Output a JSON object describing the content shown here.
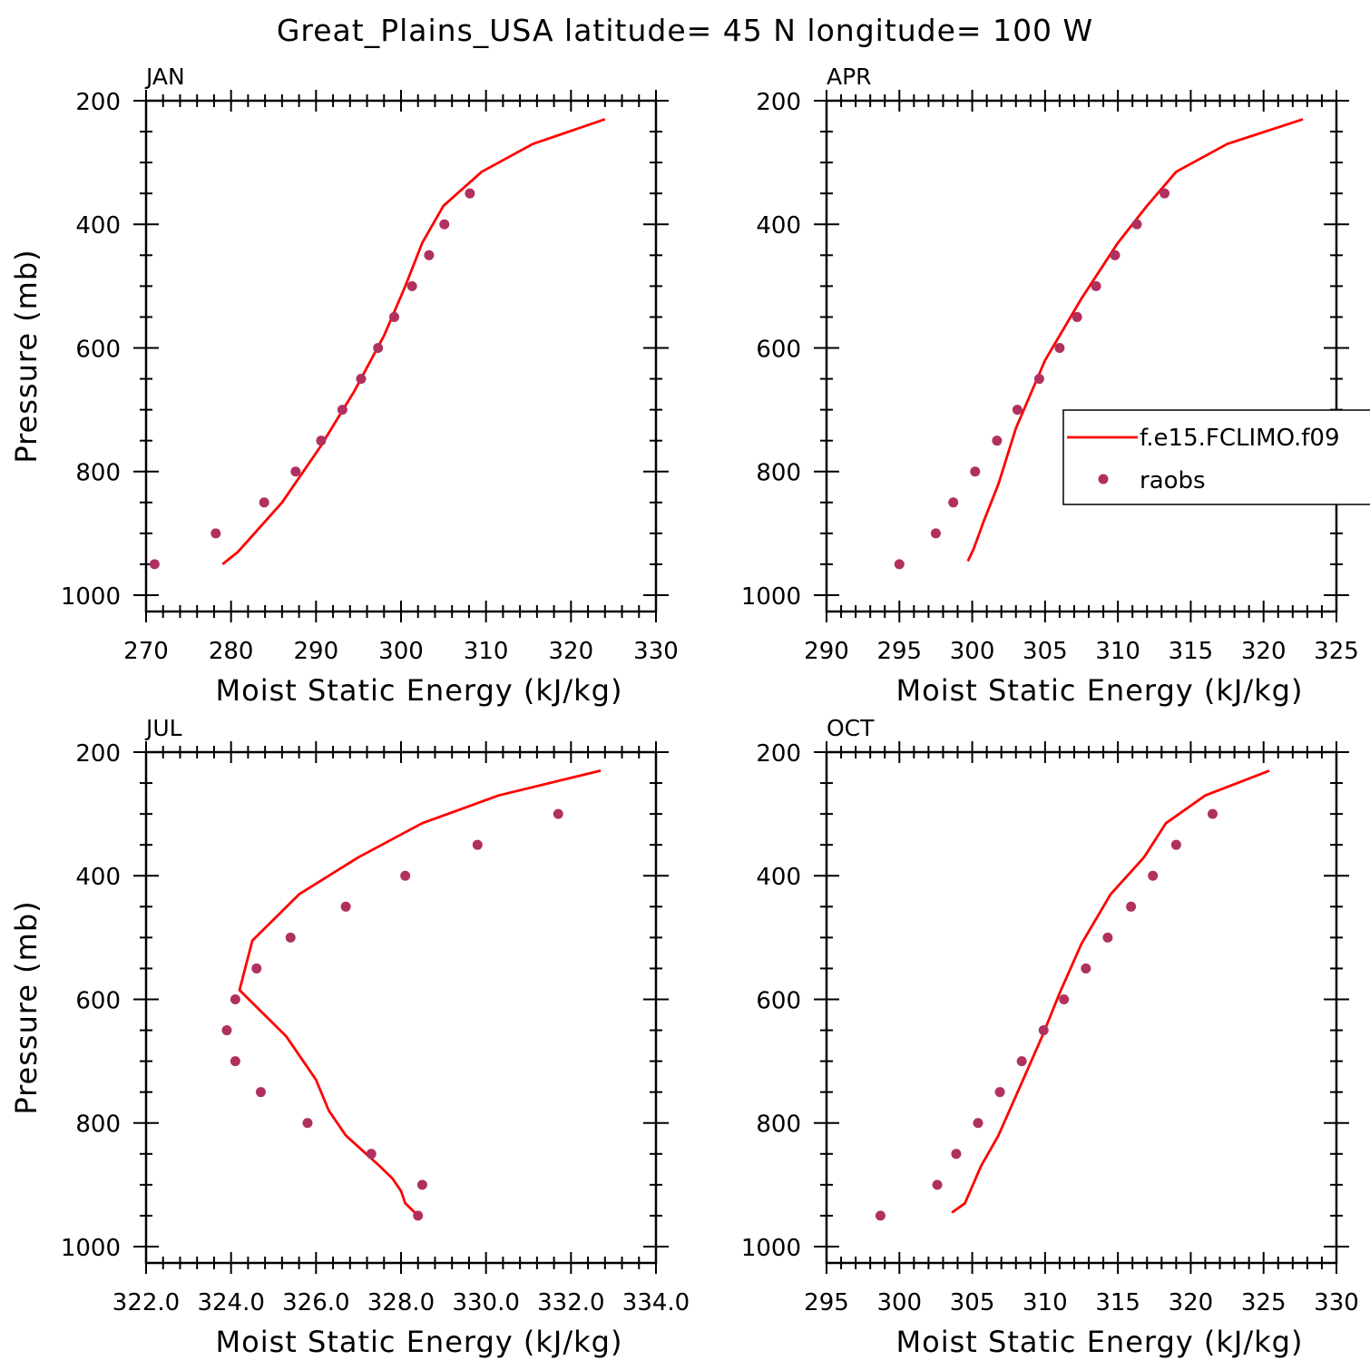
{
  "title": "Great_Plains_USA  latitude= 45 N longitude= 100 W",
  "colors": {
    "model": "#ff0000",
    "obs": "#b03060",
    "axis": "#000000"
  },
  "legend": {
    "entries": [
      {
        "label": "f.e15.FCLIMO.f09",
        "kind": "line"
      },
      {
        "label": "raobs",
        "kind": "marker"
      }
    ]
  },
  "chart_data": [
    {
      "type": "line",
      "title": "JAN",
      "xlabel": "Moist Static Energy (kJ/kg)",
      "ylabel": "Pressure (mb)",
      "xlim": [
        270,
        330
      ],
      "ylim": [
        1000,
        200
      ],
      "xticks": [
        "270",
        "280",
        "290",
        "300",
        "310",
        "320",
        "330"
      ],
      "xtick_values": [
        270,
        280,
        290,
        300,
        310,
        320,
        330
      ],
      "yticks": [
        "200",
        "400",
        "600",
        "800",
        "1000"
      ],
      "ytick_values": [
        200,
        400,
        600,
        800,
        1000
      ],
      "series": [
        {
          "name": "f.e15.FCLIMO.f09",
          "kind": "line",
          "x": [
            279.0,
            280.8,
            286.0,
            290.5,
            294.5,
            298.0,
            300.5,
            302.5,
            305.0,
            309.5,
            315.5,
            324.0
          ],
          "y": [
            950,
            930,
            850,
            760,
            670,
            580,
            500,
            430,
            370,
            315,
            270,
            230
          ]
        },
        {
          "name": "raobs",
          "kind": "scatter",
          "x": [
            271.0,
            278.2,
            283.9,
            287.6,
            290.6,
            293.1,
            295.3,
            297.3,
            299.2,
            301.3,
            303.3,
            305.1,
            308.1
          ],
          "y": [
            950,
            900,
            850,
            800,
            750,
            700,
            650,
            600,
            550,
            500,
            450,
            400,
            350
          ]
        }
      ]
    },
    {
      "type": "line",
      "title": "APR",
      "xlabel": "Moist Static Energy (kJ/kg)",
      "ylabel": "",
      "xlim": [
        290,
        325
      ],
      "ylim": [
        1000,
        200
      ],
      "xticks": [
        "290",
        "295",
        "300",
        "305",
        "310",
        "315",
        "320",
        "325"
      ],
      "xtick_values": [
        290,
        295,
        300,
        305,
        310,
        315,
        320,
        325
      ],
      "yticks": [
        "200",
        "400",
        "600",
        "800",
        "1000"
      ],
      "ytick_values": [
        200,
        400,
        600,
        800,
        1000
      ],
      "has_legend": true,
      "series": [
        {
          "name": "f.e15.FCLIMO.f09",
          "kind": "line",
          "x": [
            299.7,
            300.1,
            300.8,
            301.8,
            303.0,
            305.0,
            307.5,
            310.0,
            312.0,
            314.0,
            317.5,
            322.7
          ],
          "y": [
            945,
            925,
            880,
            820,
            730,
            620,
            520,
            430,
            370,
            315,
            270,
            230
          ]
        },
        {
          "name": "raobs",
          "kind": "scatter",
          "x": [
            295.0,
            297.5,
            298.7,
            300.2,
            301.7,
            303.1,
            304.6,
            306.0,
            307.2,
            308.5,
            309.8,
            311.3,
            313.2
          ],
          "y": [
            950,
            900,
            850,
            800,
            750,
            700,
            650,
            600,
            550,
            500,
            450,
            400,
            350
          ]
        }
      ]
    },
    {
      "type": "line",
      "title": "JUL",
      "xlabel": "Moist Static Energy (kJ/kg)",
      "ylabel": "Pressure (mb)",
      "xlim": [
        322,
        334
      ],
      "ylim": [
        1000,
        200
      ],
      "xticks": [
        "322.0",
        "324.0",
        "326.0",
        "328.0",
        "330.0",
        "332.0",
        "334.0"
      ],
      "xtick_values": [
        322,
        324,
        326,
        328,
        330,
        332,
        334
      ],
      "yticks": [
        "200",
        "400",
        "600",
        "800",
        "1000"
      ],
      "ytick_values": [
        200,
        400,
        600,
        800,
        1000
      ],
      "series": [
        {
          "name": "f.e15.FCLIMO.f09",
          "kind": "line",
          "x": [
            328.4,
            328.1,
            328.0,
            327.8,
            327.5,
            326.7,
            326.3,
            326.0,
            325.3,
            324.2,
            324.5,
            325.6,
            327.0,
            328.5,
            330.3,
            332.7
          ],
          "y": [
            950,
            930,
            910,
            890,
            870,
            820,
            780,
            730,
            660,
            585,
            505,
            430,
            370,
            315,
            270,
            230
          ]
        },
        {
          "name": "raobs",
          "kind": "scatter",
          "x": [
            328.4,
            328.5,
            327.3,
            325.8,
            324.7,
            324.1,
            323.9,
            324.1,
            324.6,
            325.4,
            326.7,
            328.1,
            329.8,
            331.7
          ],
          "y": [
            950,
            900,
            850,
            800,
            750,
            700,
            650,
            600,
            550,
            500,
            450,
            400,
            350,
            300
          ]
        }
      ]
    },
    {
      "type": "line",
      "title": "OCT",
      "xlabel": "Moist Static Energy (kJ/kg)",
      "ylabel": "",
      "xlim": [
        295,
        330
      ],
      "ylim": [
        1000,
        200
      ],
      "xticks": [
        "295",
        "300",
        "305",
        "310",
        "315",
        "320",
        "325",
        "330"
      ],
      "xtick_values": [
        295,
        300,
        305,
        310,
        315,
        320,
        325,
        330
      ],
      "yticks": [
        "200",
        "400",
        "600",
        "800",
        "1000"
      ],
      "ytick_values": [
        200,
        400,
        600,
        800,
        1000
      ],
      "series": [
        {
          "name": "f.e15.FCLIMO.f09",
          "kind": "line",
          "x": [
            303.6,
            304.5,
            305.6,
            306.8,
            308.3,
            309.8,
            311.0,
            312.5,
            314.5,
            316.8,
            318.3,
            321.0,
            325.4
          ],
          "y": [
            945,
            930,
            870,
            820,
            740,
            660,
            590,
            510,
            430,
            370,
            315,
            270,
            230
          ]
        },
        {
          "name": "raobs",
          "kind": "scatter",
          "x": [
            298.7,
            302.6,
            303.9,
            305.4,
            306.9,
            308.4,
            309.9,
            311.3,
            312.8,
            314.3,
            315.9,
            317.4,
            319.0,
            321.5
          ],
          "y": [
            950,
            900,
            850,
            800,
            750,
            700,
            650,
            600,
            550,
            500,
            450,
            400,
            350,
            300
          ]
        }
      ]
    }
  ]
}
